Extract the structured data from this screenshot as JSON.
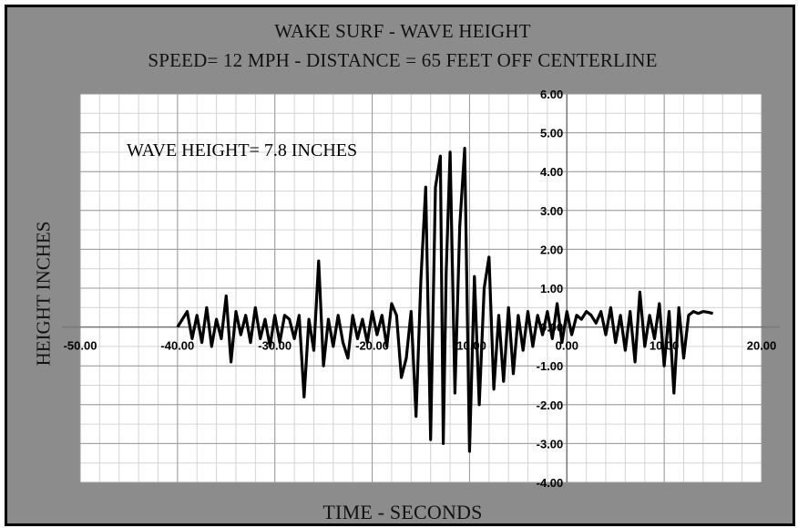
{
  "chart_data": {
    "type": "line",
    "title": "WAKE SURF - WAVE HEIGHT",
    "subtitle": "SPEED= 12 MPH - DISTANCE = 65 FEET OFF CENTERLINE",
    "xlabel": "TIME - SECONDS",
    "ylabel": "HEIGHT INCHES",
    "annotation": "WAVE HEIGHT= 7.8 INCHES",
    "xlim": [
      -50,
      20
    ],
    "ylim": [
      -4,
      6
    ],
    "x_ticks": [
      "-50.00",
      "-40.00",
      "-30.00",
      "-20.00",
      "-10.00",
      "0.00",
      "10.00",
      "20.00"
    ],
    "y_ticks": [
      "6.00",
      "5.00",
      "4.00",
      "3.00",
      "2.00",
      "1.00",
      "0.00",
      "-1.00",
      "-2.00",
      "-3.00",
      "-4.00"
    ],
    "grid": true,
    "line_color": "#000000",
    "series": [
      {
        "x": [
          -40.0,
          -39.0,
          -38.5,
          -38.0,
          -37.5,
          -37.0,
          -36.5,
          -36.0,
          -35.5,
          -35.0,
          -34.5,
          -34.0,
          -33.5,
          -33.0,
          -32.5,
          -32.0,
          -31.5,
          -31.0,
          -30.5,
          -30.0,
          -29.5,
          -29.0,
          -28.5,
          -28.0,
          -27.5,
          -27.0,
          -26.5,
          -26.0,
          -25.5,
          -25.0,
          -24.5,
          -24.0,
          -23.5,
          -23.0,
          -22.5,
          -22.0,
          -21.5,
          -21.0,
          -20.5,
          -20.0,
          -19.5,
          -19.0,
          -18.5,
          -18.0,
          -17.5,
          -17.0,
          -16.5,
          -16.0,
          -15.5,
          -15.0,
          -14.5,
          -14.0,
          -13.5,
          -13.0,
          -12.7,
          -12.4,
          -12.0,
          -11.5,
          -11.0,
          -10.5,
          -10.0,
          -9.5,
          -9.0,
          -8.5,
          -8.0,
          -7.5,
          -7.0,
          -6.5,
          -6.0,
          -5.5,
          -5.0,
          -4.5,
          -4.0,
          -3.5,
          -3.0,
          -2.5,
          -2.0,
          -1.5,
          -1.0,
          -0.5,
          0.0,
          0.5,
          1.0,
          1.5,
          2.0,
          2.5,
          3.0,
          3.5,
          4.0,
          4.5,
          5.0,
          5.5,
          6.0,
          6.5,
          7.0,
          7.5,
          8.0,
          8.5,
          9.0,
          9.5,
          10.0,
          10.5,
          11.0,
          11.5,
          12.0,
          12.5,
          13.0,
          13.5,
          14.0,
          14.5,
          15.0
        ],
        "y": [
          0.0,
          0.4,
          -0.3,
          0.3,
          -0.4,
          0.5,
          -0.5,
          0.2,
          -0.3,
          0.8,
          -0.9,
          0.4,
          -0.2,
          0.3,
          -0.4,
          0.5,
          -0.3,
          0.2,
          -0.5,
          0.3,
          -0.4,
          0.3,
          0.2,
          -0.3,
          0.3,
          -1.8,
          0.2,
          -0.6,
          1.7,
          -1.0,
          0.2,
          -0.5,
          0.3,
          -0.4,
          -0.8,
          0.3,
          -0.3,
          0.2,
          -0.4,
          0.4,
          -0.2,
          0.3,
          -0.5,
          0.6,
          0.3,
          -1.3,
          -0.8,
          0.4,
          -2.3,
          1.2,
          3.6,
          -2.9,
          3.6,
          4.4,
          -3.0,
          1.4,
          4.5,
          -1.7,
          2.6,
          4.6,
          -3.2,
          1.3,
          -2.0,
          1.0,
          1.8,
          -1.6,
          0.3,
          -1.4,
          0.5,
          -1.2,
          0.3,
          -0.6,
          0.4,
          -0.5,
          0.3,
          -0.2,
          0.4,
          -0.3,
          0.6,
          -0.4,
          0.4,
          -0.2,
          0.3,
          0.2,
          0.4,
          0.3,
          0.1,
          0.4,
          -0.2,
          0.5,
          -0.4,
          0.3,
          -0.6,
          0.4,
          -0.9,
          0.9,
          -0.5,
          0.3,
          -0.3,
          0.6,
          -1.0,
          0.4,
          -1.7,
          0.5,
          -0.8,
          0.3,
          0.4,
          0.35,
          0.4,
          0.38,
          0.35
        ]
      }
    ]
  }
}
